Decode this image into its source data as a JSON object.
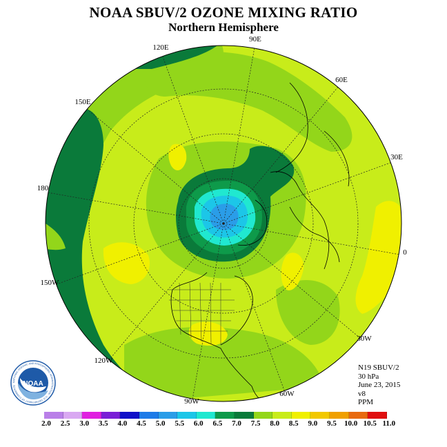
{
  "title": "NOAA SBUV/2 OZONE MIXING RATIO",
  "subtitle": "Northern Hemisphere",
  "longitude_labels": [
    "120E",
    "90E",
    "60E",
    "150E",
    "30E",
    "180",
    "0",
    "150W",
    "30W",
    "120W",
    "60W",
    "90W"
  ],
  "info": {
    "instrument": "N19 SBUV/2",
    "pressure": "30 hPa",
    "date": "June 23, 2015",
    "version": "v8",
    "units": "PPM"
  },
  "colorbar": {
    "labels": [
      "2.0",
      "2.5",
      "3.0",
      "3.5",
      "4.0",
      "4.5",
      "5.0",
      "5.5",
      "6.0",
      "6.5",
      "7.0",
      "7.5",
      "8.0",
      "8.5",
      "9.0",
      "9.5",
      "10.0",
      "10.5",
      "11.0"
    ],
    "colors": [
      "#b97fe8",
      "#d9a8f2",
      "#e020e0",
      "#7a1fd6",
      "#1010c8",
      "#1e7be8",
      "#2a9de8",
      "#1cc6e8",
      "#20e8d0",
      "#0e9a4a",
      "#0a7a3a",
      "#93d61a",
      "#c8ec1a",
      "#f0f000",
      "#f2c800",
      "#f0a000",
      "#e86a10",
      "#e01010",
      "#8a5a3a"
    ]
  },
  "logo": {
    "text": "NOAA",
    "ring_text": "NATIONAL OCEANIC AND ATMOSPHERIC ADMINISTRATION · U.S. DEPARTMENT OF COMMERCE"
  },
  "map_colors": {
    "base": "#c8ec1a",
    "band_75": "#93d61a",
    "band_85": "#f0f000",
    "band_70": "#0a7a3a",
    "band_65": "#0e9a4a",
    "low_60": "#20e8d0",
    "low_55": "#1cc6e8",
    "low_50": "#2a9de8"
  }
}
